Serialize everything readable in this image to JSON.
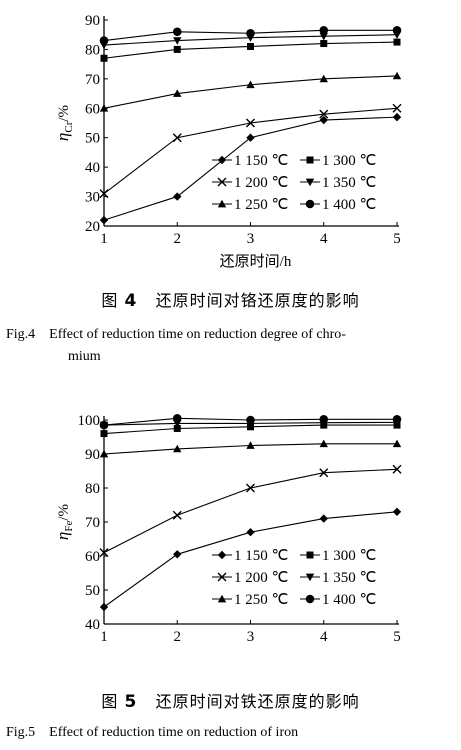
{
  "chart_data": [
    {
      "type": "line",
      "xlabel": "还原时间/h",
      "ylabel_main": "η",
      "ylabel_sub": "Cr",
      "ylabel_unit": "/%",
      "x": [
        1,
        2,
        3,
        4,
        5
      ],
      "xticks": [
        "1",
        "2",
        "3",
        "4",
        "5"
      ],
      "yticks": [
        "20",
        "30",
        "40",
        "50",
        "60",
        "70",
        "80",
        "90"
      ],
      "ylim": [
        20,
        90
      ],
      "legend_position": "lower-right",
      "grid": false,
      "series": [
        {
          "name": "1 150 ℃",
          "marker": "diamond",
          "values": [
            22,
            30,
            50,
            56,
            57
          ]
        },
        {
          "name": "1 200 ℃",
          "marker": "x",
          "values": [
            31,
            50,
            55,
            58,
            60
          ]
        },
        {
          "name": "1 250 ℃",
          "marker": "triangle-up",
          "values": [
            60,
            65,
            68,
            70,
            71
          ]
        },
        {
          "name": "1 300 ℃",
          "marker": "square",
          "values": [
            77,
            80,
            81,
            82,
            82.5
          ]
        },
        {
          "name": "1 350 ℃",
          "marker": "triangle-down",
          "values": [
            81.5,
            83,
            84,
            84.5,
            85
          ]
        },
        {
          "name": "1 400 ℃",
          "marker": "circle",
          "values": [
            83,
            86,
            85.5,
            86.5,
            86.5
          ]
        }
      ],
      "caption_cn_prefix": "图",
      "caption_cn_number": "4",
      "caption_cn_text": "还原时间对铬还原度的影响",
      "caption_en_line1": "Fig.4    Effect of reduction time on reduction degree of chro-",
      "caption_en_line2": "mium"
    },
    {
      "type": "line",
      "xlabel": "还原时间/h",
      "ylabel_main": "η",
      "ylabel_sub": "Fe",
      "ylabel_unit": "/%",
      "x": [
        1,
        2,
        3,
        4,
        5
      ],
      "xticks": [
        "1",
        "2",
        "3",
        "4",
        "5"
      ],
      "yticks": [
        "40",
        "50",
        "60",
        "70",
        "80",
        "90",
        "100"
      ],
      "ylim": [
        40,
        100
      ],
      "legend_position": "lower-right",
      "grid": false,
      "series": [
        {
          "name": "1 150 ℃",
          "marker": "diamond",
          "values": [
            45,
            60.5,
            67,
            71,
            73
          ]
        },
        {
          "name": "1 200 ℃",
          "marker": "x",
          "values": [
            61,
            72,
            80,
            84.5,
            85.5
          ]
        },
        {
          "name": "1 250 ℃",
          "marker": "triangle-up",
          "values": [
            90,
            91.5,
            92.5,
            93,
            93
          ]
        },
        {
          "name": "1 300 ℃",
          "marker": "square",
          "values": [
            96,
            97.5,
            98,
            98.5,
            98.5
          ]
        },
        {
          "name": "1 350 ℃",
          "marker": "triangle-down",
          "values": [
            98.5,
            99,
            99,
            99.2,
            99.3
          ]
        },
        {
          "name": "1 400 ℃",
          "marker": "circle",
          "values": [
            98.5,
            100.5,
            100,
            100.2,
            100.2
          ]
        }
      ],
      "caption_cn_prefix": "图",
      "caption_cn_number": "5",
      "caption_cn_text": "还原时间对铁还原度的影响",
      "caption_en_line1": "Fig.5    Effect of reduction time on reduction of iron",
      "caption_en_line2": ""
    }
  ]
}
